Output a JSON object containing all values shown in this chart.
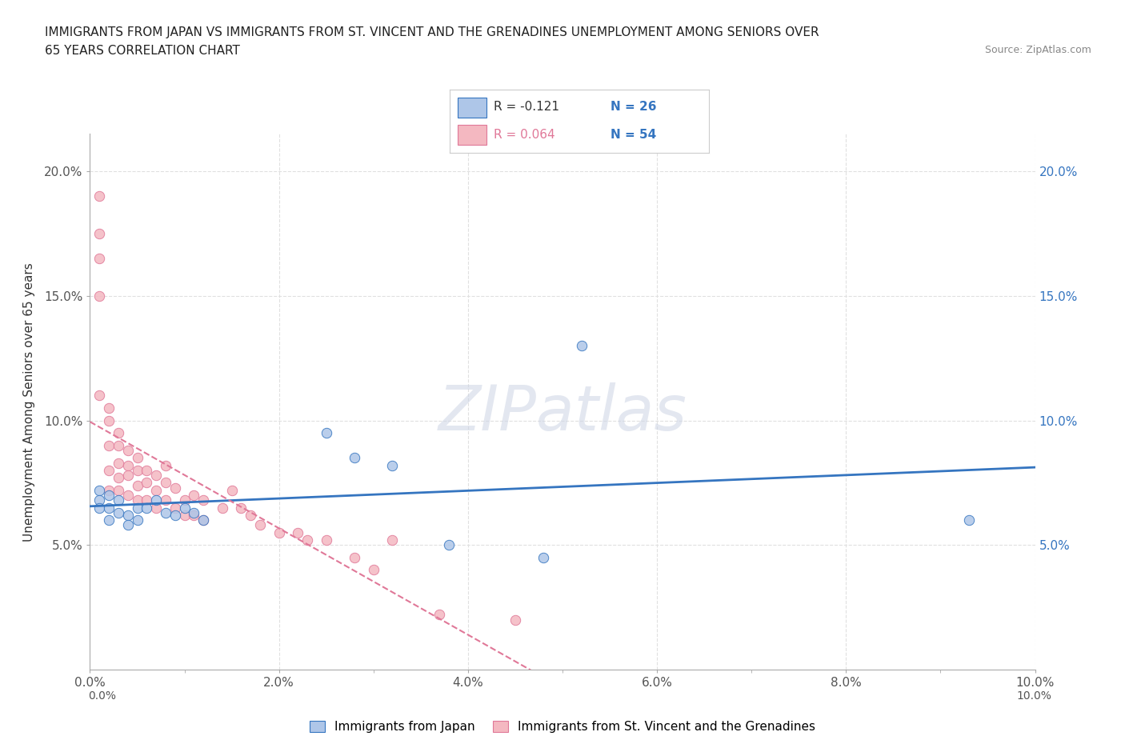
{
  "title_line1": "IMMIGRANTS FROM JAPAN VS IMMIGRANTS FROM ST. VINCENT AND THE GRENADINES UNEMPLOYMENT AMONG SENIORS OVER",
  "title_line2": "65 YEARS CORRELATION CHART",
  "source_text": "Source: ZipAtlas.com",
  "ylabel": "Unemployment Among Seniors over 65 years",
  "xlim": [
    0.0,
    0.1
  ],
  "ylim": [
    0.0,
    0.215
  ],
  "xtick_labels": [
    "0.0%",
    "",
    "2.0%",
    "",
    "4.0%",
    "",
    "6.0%",
    "",
    "8.0%",
    "",
    "10.0%"
  ],
  "xtick_values": [
    0.0,
    0.01,
    0.02,
    0.03,
    0.04,
    0.05,
    0.06,
    0.07,
    0.08,
    0.09,
    0.1
  ],
  "ytick_labels": [
    "5.0%",
    "10.0%",
    "15.0%",
    "20.0%"
  ],
  "ytick_values": [
    0.05,
    0.1,
    0.15,
    0.2
  ],
  "legend_japan_r": "-0.121",
  "legend_japan_n": "26",
  "legend_svg_r": "0.064",
  "legend_svg_n": "54",
  "japan_color": "#aec6e8",
  "svg_color": "#f4b8c1",
  "japan_line_color": "#3575c0",
  "svg_line_color": "#e07898",
  "watermark": "ZIPatlas",
  "legend_label_japan": "Immigrants from Japan",
  "legend_label_svg": "Immigrants from St. Vincent and the Grenadines",
  "japan_x": [
    0.001,
    0.001,
    0.001,
    0.002,
    0.002,
    0.002,
    0.003,
    0.003,
    0.004,
    0.004,
    0.005,
    0.005,
    0.006,
    0.007,
    0.008,
    0.009,
    0.01,
    0.011,
    0.012,
    0.025,
    0.028,
    0.032,
    0.038,
    0.048,
    0.052,
    0.093
  ],
  "japan_y": [
    0.072,
    0.068,
    0.065,
    0.07,
    0.065,
    0.06,
    0.068,
    0.063,
    0.062,
    0.058,
    0.065,
    0.06,
    0.065,
    0.068,
    0.063,
    0.062,
    0.065,
    0.063,
    0.06,
    0.095,
    0.085,
    0.082,
    0.05,
    0.045,
    0.13,
    0.06
  ],
  "svg_x": [
    0.001,
    0.001,
    0.001,
    0.001,
    0.001,
    0.002,
    0.002,
    0.002,
    0.002,
    0.002,
    0.003,
    0.003,
    0.003,
    0.003,
    0.003,
    0.004,
    0.004,
    0.004,
    0.004,
    0.005,
    0.005,
    0.005,
    0.005,
    0.006,
    0.006,
    0.006,
    0.007,
    0.007,
    0.007,
    0.008,
    0.008,
    0.008,
    0.009,
    0.009,
    0.01,
    0.01,
    0.011,
    0.011,
    0.012,
    0.012,
    0.014,
    0.015,
    0.016,
    0.017,
    0.018,
    0.02,
    0.022,
    0.023,
    0.025,
    0.028,
    0.03,
    0.032,
    0.037,
    0.045
  ],
  "svg_y": [
    0.19,
    0.175,
    0.165,
    0.15,
    0.11,
    0.105,
    0.1,
    0.09,
    0.08,
    0.072,
    0.095,
    0.09,
    0.083,
    0.077,
    0.072,
    0.088,
    0.082,
    0.078,
    0.07,
    0.085,
    0.08,
    0.074,
    0.068,
    0.08,
    0.075,
    0.068,
    0.078,
    0.072,
    0.065,
    0.082,
    0.075,
    0.068,
    0.073,
    0.065,
    0.068,
    0.062,
    0.07,
    0.062,
    0.068,
    0.06,
    0.065,
    0.072,
    0.065,
    0.062,
    0.058,
    0.055,
    0.055,
    0.052,
    0.052,
    0.045,
    0.04,
    0.052,
    0.022,
    0.02
  ],
  "background_color": "#ffffff",
  "grid_color": "#e0e0e0"
}
